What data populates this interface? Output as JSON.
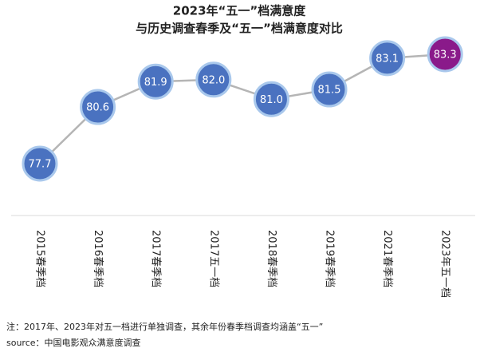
{
  "chart_data": {
    "type": "line",
    "title": "2023年“五一”档满意度",
    "subtitle": "与历史调查春季及“五一”档满意度对比",
    "categories": [
      "2015春季档",
      "2016春季档",
      "2017春季档",
      "2017五一档",
      "2018春季档",
      "2019春季档",
      "2021春季档",
      "2023年五一档"
    ],
    "values": [
      77.7,
      80.6,
      81.9,
      82.0,
      81.0,
      81.5,
      83.1,
      83.3
    ],
    "value_labels": [
      "77.7",
      "80.6",
      "81.9",
      "82.0",
      "81.0",
      "81.5",
      "83.1",
      "83.3"
    ],
    "line_color": "#b5b5b5",
    "marker_colors": [
      "#4a72c0",
      "#4a72c0",
      "#4a72c0",
      "#4a72c0",
      "#4a72c0",
      "#4a72c0",
      "#4a72c0",
      "#8a1a8a"
    ],
    "note": "注：2017年、2023年对五一档进行单独调查，其余年份春季档调查均涵盖“五一”",
    "source": "source：中国电影观众满意度调查"
  }
}
